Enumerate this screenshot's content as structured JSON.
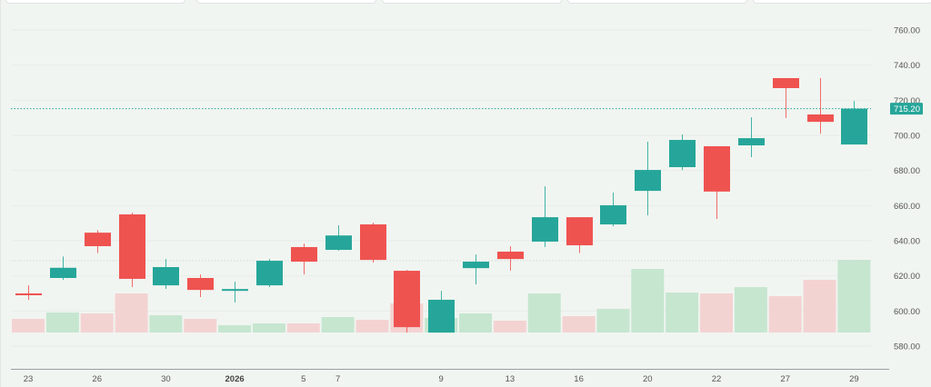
{
  "colors": {
    "background": "#f1f5f1",
    "up": "#26a69a",
    "down": "#ef5350",
    "up_volume": "#c6e6d0",
    "down_volume": "#f3d3d2",
    "grid": "#e8ece8",
    "axis_line": "#9aa0a6",
    "last_price_line": "#26a69a"
  },
  "header_tabs": [
    {
      "x": 6,
      "w": 196
    },
    {
      "x": 216,
      "w": 196
    },
    {
      "x": 420,
      "w": 196
    },
    {
      "x": 624,
      "w": 196
    },
    {
      "x": 828,
      "w": 196
    }
  ],
  "price_axis": {
    "ticks": [
      "760.00",
      "740.00",
      "720.00",
      "700.00",
      "680.00",
      "660.00",
      "640.00",
      "620.00",
      "600.00",
      "580.00"
    ],
    "last_price_label": "715.20"
  },
  "time_axis": {
    "ticks": [
      {
        "label": "23",
        "bold": false
      },
      {
        "label": "26",
        "bold": false
      },
      {
        "label": "30",
        "bold": false
      },
      {
        "label": "2026",
        "bold": true
      },
      {
        "label": "5",
        "bold": false
      },
      {
        "label": "7",
        "bold": false
      },
      {
        "label": "9",
        "bold": false
      },
      {
        "label": "13",
        "bold": false
      },
      {
        "label": "16",
        "bold": false
      },
      {
        "label": "20",
        "bold": false
      },
      {
        "label": "22",
        "bold": false
      },
      {
        "label": "27",
        "bold": false
      },
      {
        "label": "29",
        "bold": false
      }
    ]
  },
  "chart_data": {
    "type": "candlestick",
    "title": "",
    "xlabel": "",
    "ylabel": "",
    "ylim": [
      580,
      760
    ],
    "grid": true,
    "legend": "none",
    "last_price": 715.2,
    "secondary_price_line": 628.6,
    "x_tick_labels": [
      "23",
      "26",
      "30",
      "2026",
      "5",
      "7",
      "9",
      "13",
      "16",
      "20",
      "22",
      "27",
      "29"
    ],
    "y_tick_labels": [
      "760.00",
      "740.00",
      "720.00",
      "700.00",
      "680.00",
      "660.00",
      "640.00",
      "620.00",
      "600.00",
      "580.00"
    ],
    "candles": [
      {
        "o": 610.0,
        "h": 614.6,
        "l": 606.4,
        "c": 609.0,
        "vol": 15,
        "dir": "down"
      },
      {
        "o": 618.8,
        "h": 631.0,
        "l": 617.7,
        "c": 624.6,
        "vol": 22,
        "dir": "up"
      },
      {
        "o": 644.6,
        "h": 646.0,
        "l": 633.0,
        "c": 636.9,
        "vol": 21,
        "dir": "down"
      },
      {
        "o": 655.0,
        "h": 656.0,
        "l": 613.6,
        "c": 618.3,
        "vol": 43,
        "dir": "down"
      },
      {
        "o": 614.6,
        "h": 629.6,
        "l": 612.6,
        "c": 625.0,
        "vol": 19,
        "dir": "up"
      },
      {
        "o": 618.8,
        "h": 620.8,
        "l": 607.9,
        "c": 612.0,
        "vol": 15,
        "dir": "down"
      },
      {
        "o": 611.5,
        "h": 616.7,
        "l": 604.9,
        "c": 612.5,
        "vol": 8,
        "dir": "up"
      },
      {
        "o": 614.6,
        "h": 629.6,
        "l": 613.6,
        "c": 628.6,
        "vol": 10,
        "dir": "up"
      },
      {
        "o": 636.4,
        "h": 638.4,
        "l": 620.8,
        "c": 628.1,
        "vol": 10,
        "dir": "down"
      },
      {
        "o": 634.8,
        "h": 648.8,
        "l": 634.3,
        "c": 643.0,
        "vol": 17,
        "dir": "up"
      },
      {
        "o": 649.3,
        "h": 650.3,
        "l": 627.6,
        "c": 629.1,
        "vol": 14,
        "dir": "down"
      },
      {
        "o": 622.9,
        "h": 623.4,
        "l": 587.7,
        "c": 590.8,
        "vol": 32,
        "dir": "down"
      },
      {
        "o": 587.7,
        "h": 611.5,
        "l": 587.7,
        "c": 606.4,
        "vol": 16,
        "dir": "up"
      },
      {
        "o": 624.4,
        "h": 632.2,
        "l": 615.1,
        "c": 628.1,
        "vol": 21,
        "dir": "up"
      },
      {
        "o": 633.8,
        "h": 636.9,
        "l": 623.0,
        "c": 629.6,
        "vol": 13,
        "dir": "down"
      },
      {
        "o": 639.5,
        "h": 671.0,
        "l": 636.4,
        "c": 653.4,
        "vol": 43,
        "dir": "up"
      },
      {
        "o": 653.4,
        "h": 653.4,
        "l": 633.0,
        "c": 637.4,
        "vol": 18,
        "dir": "down"
      },
      {
        "o": 649.3,
        "h": 667.4,
        "l": 648.3,
        "c": 660.2,
        "vol": 26,
        "dir": "up"
      },
      {
        "o": 668.4,
        "h": 696.4,
        "l": 654.5,
        "c": 680.3,
        "vol": 70,
        "dir": "up"
      },
      {
        "o": 681.9,
        "h": 700.5,
        "l": 680.3,
        "c": 697.4,
        "vol": 44,
        "dir": "up"
      },
      {
        "o": 693.8,
        "h": 693.8,
        "l": 652.4,
        "c": 668.0,
        "vol": 43,
        "dir": "down"
      },
      {
        "o": 694.3,
        "h": 710.3,
        "l": 687.6,
        "c": 698.4,
        "vol": 50,
        "dir": "up"
      },
      {
        "o": 732.6,
        "h": 732.6,
        "l": 709.8,
        "c": 726.9,
        "vol": 40,
        "dir": "down"
      },
      {
        "o": 711.9,
        "h": 732.6,
        "l": 701.0,
        "c": 707.7,
        "vol": 58,
        "dir": "down"
      },
      {
        "o": 694.8,
        "h": 719.6,
        "l": 694.8,
        "c": 715.2,
        "vol": 80,
        "dir": "up"
      }
    ]
  }
}
